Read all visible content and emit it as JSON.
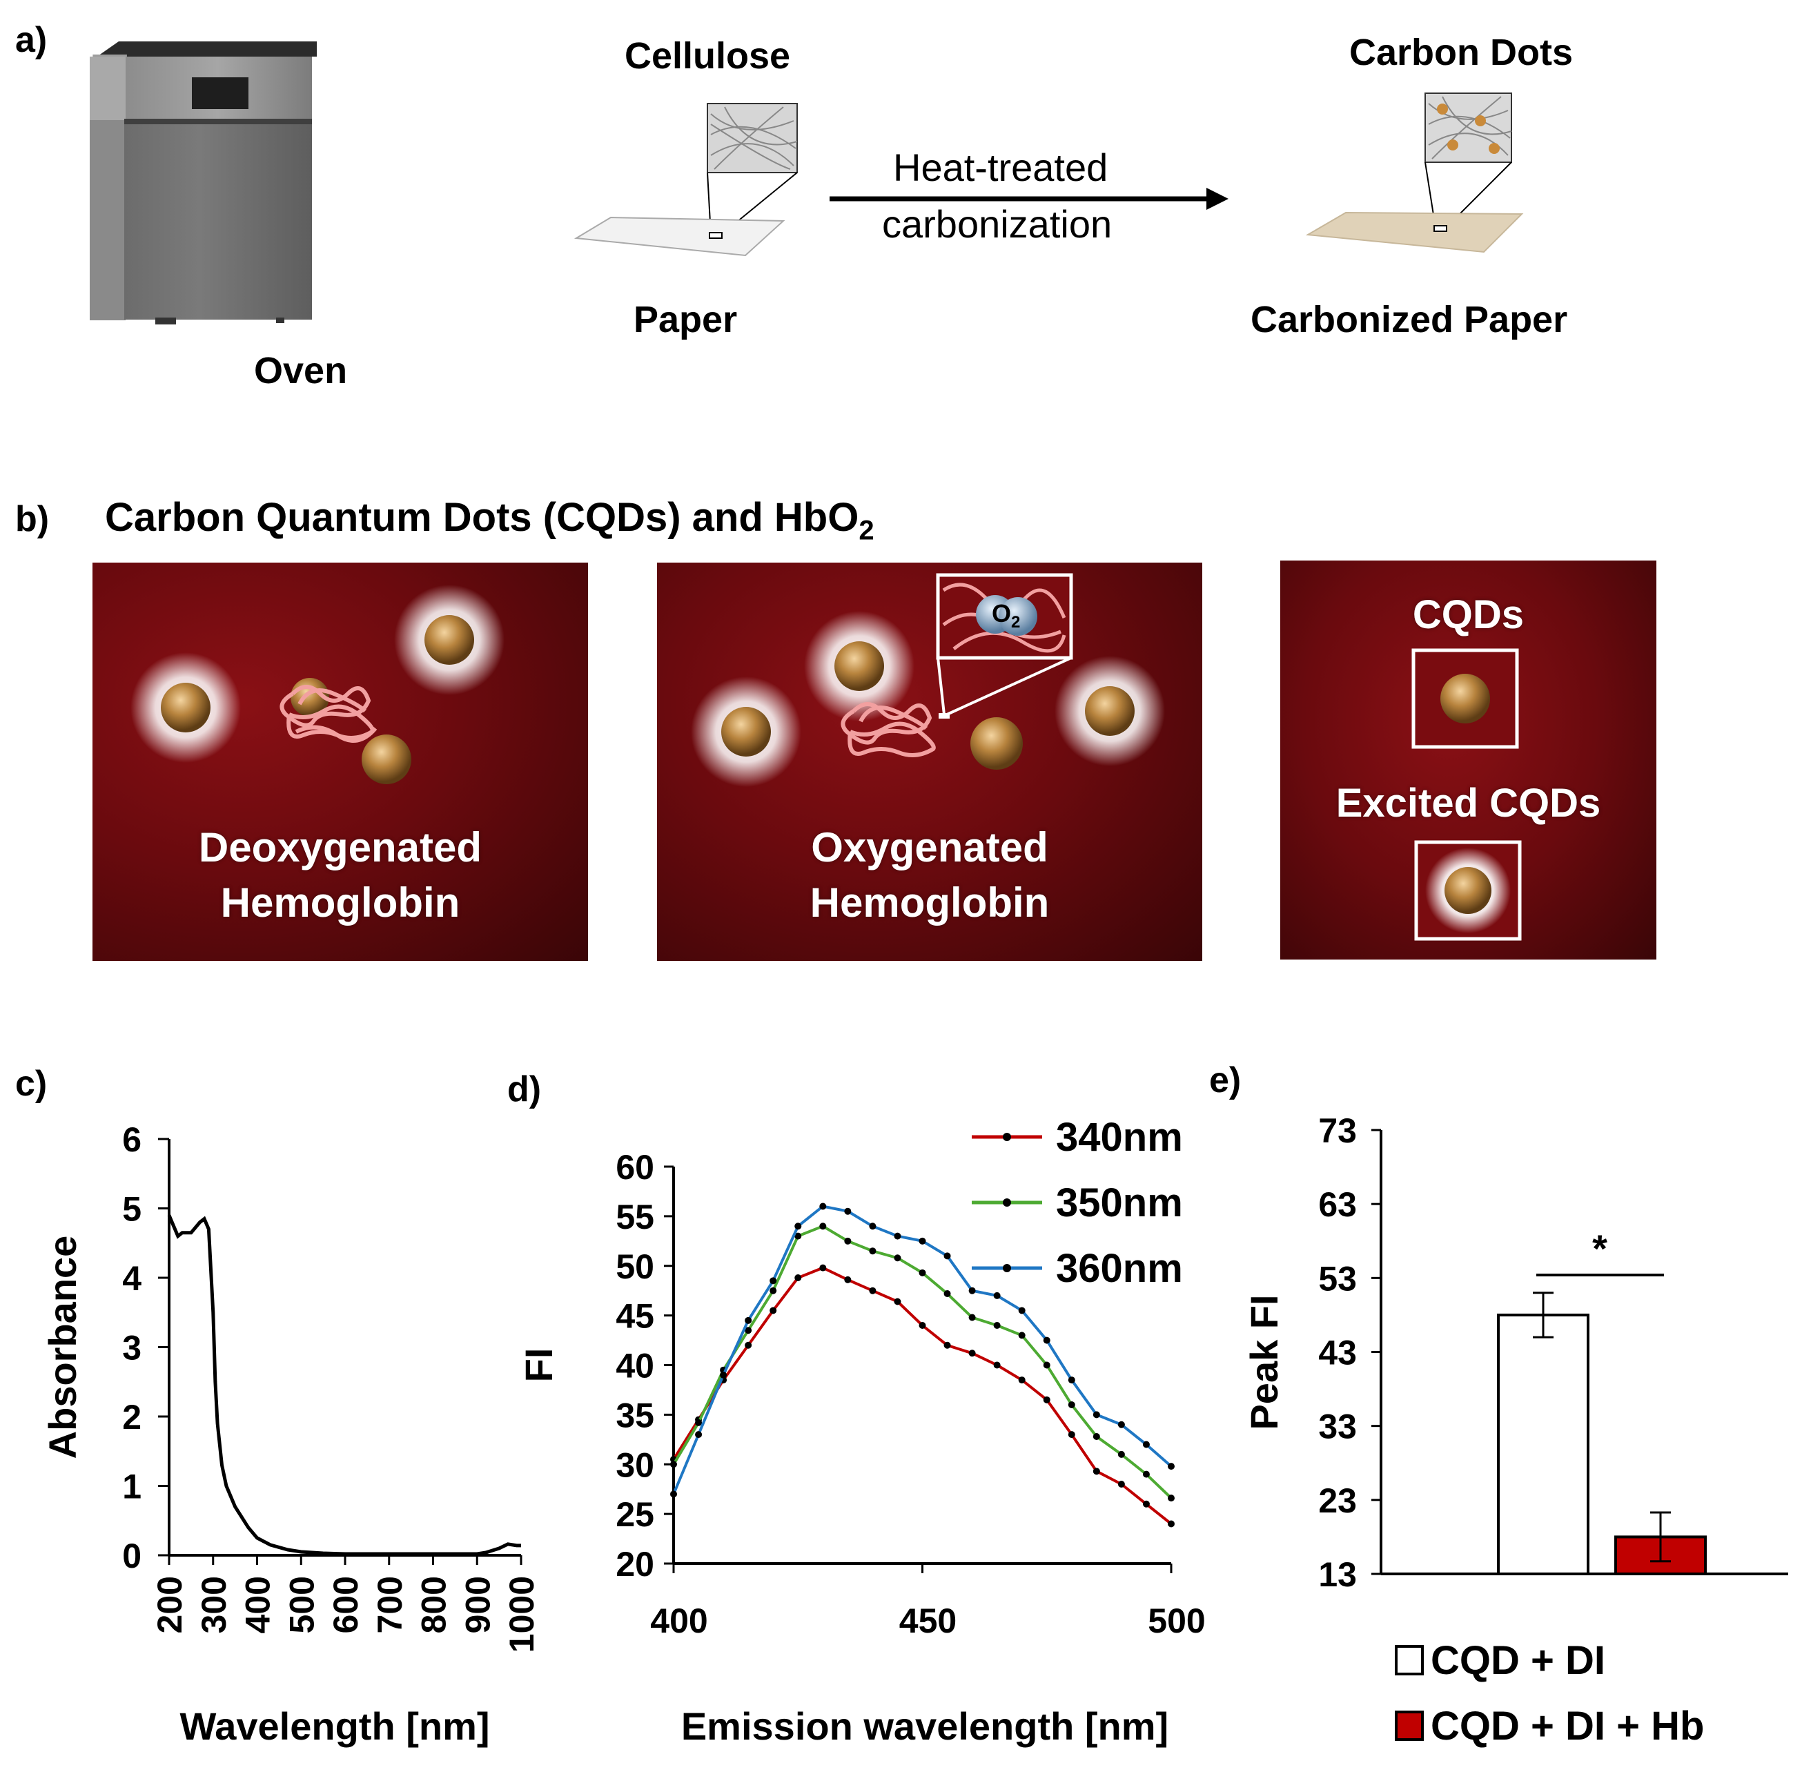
{
  "panel_a": {
    "letter": "a)",
    "oven_label": "Oven",
    "cellulose_label": "Cellulose",
    "paper_label": "Paper",
    "arrow_line1": "Heat-treated",
    "arrow_line2": "carbonization",
    "carbon_dots_label": "Carbon Dots",
    "carbonized_label": "Carbonized Paper"
  },
  "panel_b": {
    "letter": "b)",
    "title": "Carbon Quantum Dots (CQDs) and HbO",
    "title_sub": "2",
    "deoxy_line1": "Deoxygenated",
    "deoxy_line2": "Hemoglobin",
    "oxy_line1": "Oxygenated",
    "oxy_line2": "Hemoglobin",
    "o2_label": "O",
    "o2_sub": "2",
    "cqds_label": "CQDs",
    "excited_label": "Excited CQDs"
  },
  "colors": {
    "blood": "#7a0c10",
    "dot": "#b8843e",
    "red_series": "#c00000",
    "green_series": "#4daa32",
    "blue_series": "#1f77c4",
    "bar_red": "#c00000"
  },
  "chart_data": [
    {
      "type": "line",
      "panel": "c)",
      "title": "",
      "xlabel": "Wavelength [nm]",
      "ylabel": "Absorbance",
      "xlim": [
        200,
        1000
      ],
      "ylim": [
        0,
        6
      ],
      "xticks": [
        200,
        300,
        400,
        500,
        600,
        700,
        800,
        900,
        1000
      ],
      "yticks": [
        0,
        1,
        2,
        3,
        4,
        5,
        6
      ],
      "series": [
        {
          "name": "Absorbance",
          "x": [
            200,
            210,
            220,
            230,
            250,
            270,
            280,
            290,
            300,
            305,
            310,
            320,
            330,
            350,
            380,
            400,
            430,
            470,
            500,
            550,
            600,
            700,
            800,
            900,
            920,
            950,
            970,
            990,
            1000
          ],
          "y": [
            4.9,
            4.75,
            4.6,
            4.65,
            4.65,
            4.8,
            4.85,
            4.7,
            3.5,
            2.5,
            1.9,
            1.3,
            1.0,
            0.7,
            0.4,
            0.25,
            0.15,
            0.08,
            0.05,
            0.03,
            0.02,
            0.02,
            0.02,
            0.02,
            0.04,
            0.1,
            0.16,
            0.14,
            0.14
          ]
        }
      ]
    },
    {
      "type": "line",
      "panel": "d)",
      "title": "",
      "xlabel": "Emission wavelength [nm]",
      "ylabel": "FI",
      "xlim": [
        400,
        500
      ],
      "ylim": [
        20,
        60
      ],
      "xticks": [
        400,
        450,
        500
      ],
      "yticks": [
        20,
        25,
        30,
        35,
        40,
        45,
        50,
        55,
        60
      ],
      "x": [
        400,
        405,
        410,
        415,
        420,
        425,
        430,
        435,
        440,
        445,
        450,
        455,
        460,
        465,
        470,
        475,
        480,
        485,
        490,
        495,
        500
      ],
      "series": [
        {
          "name": "340nm",
          "values": [
            30.5,
            34.5,
            38.5,
            42,
            45.5,
            48.8,
            49.8,
            48.6,
            47.5,
            46.4,
            44,
            42,
            41.2,
            40,
            38.5,
            36.5,
            33,
            29.3,
            28,
            26,
            24
          ]
        },
        {
          "name": "350nm",
          "values": [
            30,
            34.2,
            39.5,
            43.5,
            47.5,
            53,
            54,
            52.5,
            51.5,
            50.8,
            49.3,
            47.2,
            44.8,
            44,
            43,
            40,
            36,
            32.8,
            31,
            29,
            26.6
          ]
        },
        {
          "name": "360nm",
          "values": [
            27,
            33,
            39,
            44.5,
            48.5,
            54,
            56,
            55.5,
            54,
            53,
            52.5,
            51,
            47.5,
            47,
            45.5,
            42.5,
            38.5,
            35,
            34,
            32,
            29.8
          ]
        }
      ]
    },
    {
      "type": "bar",
      "panel": "e)",
      "title": "",
      "xlabel": "",
      "ylabel": "Peak FI",
      "ylim": [
        13,
        73
      ],
      "yticks": [
        13,
        23,
        33,
        43,
        53,
        63,
        73
      ],
      "categories": [
        "CQD + DI",
        "CQD + DI + Hb"
      ],
      "values": [
        48,
        18
      ],
      "errors": [
        3,
        3.3
      ],
      "significance": "*"
    }
  ]
}
